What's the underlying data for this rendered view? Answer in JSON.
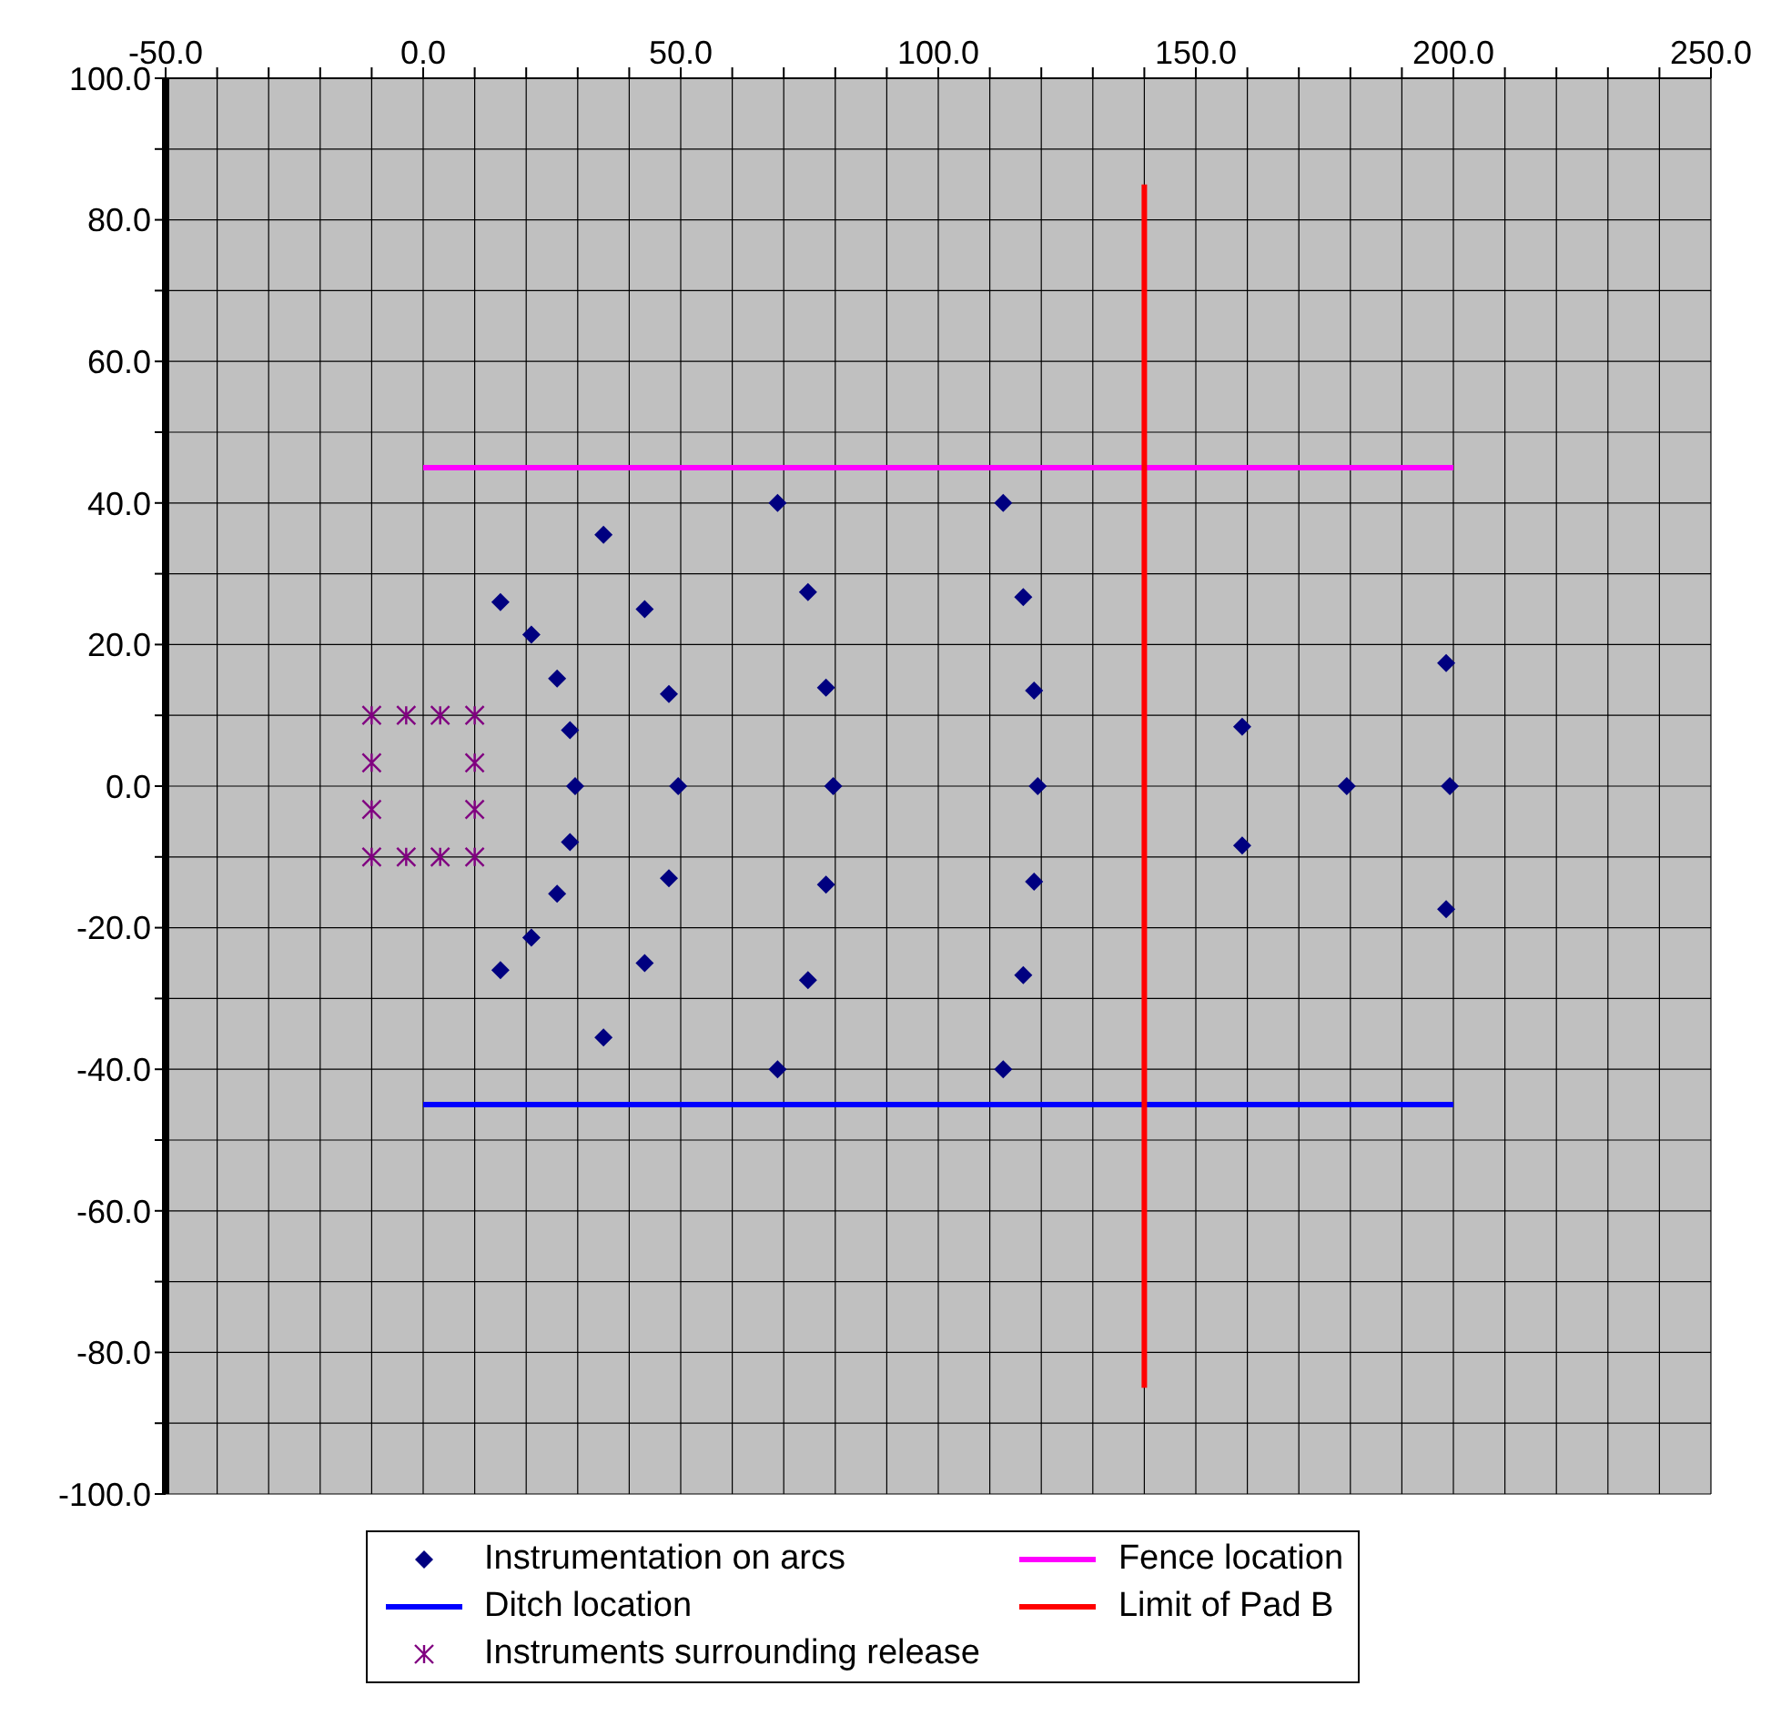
{
  "chart_data": {
    "type": "scatter",
    "xlim": [
      -50,
      250
    ],
    "xticks": [
      {
        "value": -50,
        "label": "-50.0"
      },
      {
        "value": -40,
        "label": null
      },
      {
        "value": -30,
        "label": null
      },
      {
        "value": -20,
        "label": null
      },
      {
        "value": -10,
        "label": null
      },
      {
        "value": 0,
        "label": "0.0"
      },
      {
        "value": 10,
        "label": null
      },
      {
        "value": 20,
        "label": null
      },
      {
        "value": 30,
        "label": null
      },
      {
        "value": 40,
        "label": null
      },
      {
        "value": 50,
        "label": "50.0"
      },
      {
        "value": 60,
        "label": null
      },
      {
        "value": 70,
        "label": null
      },
      {
        "value": 80,
        "label": null
      },
      {
        "value": 90,
        "label": null
      },
      {
        "value": 100,
        "label": "100.0"
      },
      {
        "value": 110,
        "label": null
      },
      {
        "value": 120,
        "label": null
      },
      {
        "value": 130,
        "label": null
      },
      {
        "value": 140,
        "label": null
      },
      {
        "value": 150,
        "label": "150.0"
      },
      {
        "value": 160,
        "label": null
      },
      {
        "value": 170,
        "label": null
      },
      {
        "value": 180,
        "label": null
      },
      {
        "value": 190,
        "label": null
      },
      {
        "value": 200,
        "label": "200.0"
      },
      {
        "value": 210,
        "label": null
      },
      {
        "value": 220,
        "label": null
      },
      {
        "value": 230,
        "label": null
      },
      {
        "value": 240,
        "label": null
      },
      {
        "value": 250,
        "label": "250.0"
      }
    ],
    "ylim": [
      -100,
      100
    ],
    "yticks": [
      {
        "value": -100,
        "label": "-100.0"
      },
      {
        "value": -90,
        "label": null
      },
      {
        "value": -80,
        "label": "-80.0"
      },
      {
        "value": -70,
        "label": null
      },
      {
        "value": -60,
        "label": "-60.0"
      },
      {
        "value": -50,
        "label": null
      },
      {
        "value": -40,
        "label": "-40.0"
      },
      {
        "value": -30,
        "label": null
      },
      {
        "value": -20,
        "label": "-20.0"
      },
      {
        "value": -10,
        "label": null
      },
      {
        "value": 0,
        "label": "0.0"
      },
      {
        "value": 10,
        "label": null
      },
      {
        "value": 20,
        "label": "20.0"
      },
      {
        "value": 30,
        "label": null
      },
      {
        "value": 40,
        "label": "40.0"
      },
      {
        "value": 50,
        "label": null
      },
      {
        "value": 60,
        "label": "60.0"
      },
      {
        "value": 70,
        "label": null
      },
      {
        "value": 80,
        "label": "80.0"
      },
      {
        "value": 90,
        "label": null
      },
      {
        "value": 100,
        "label": "100.0"
      }
    ],
    "grid": true,
    "legend": "bottom",
    "series": [
      {
        "name": "Instrumentation on arcs",
        "marker": "diamond",
        "color": "#000080",
        "x": [
          15,
          21,
          26,
          28.5,
          29.5,
          28.5,
          26,
          21,
          15,
          35,
          43,
          47.7,
          49.5,
          47.7,
          43,
          35,
          68.8,
          74.7,
          78.2,
          79.6,
          78.2,
          74.7,
          68.8,
          112.6,
          116.5,
          118.6,
          119.3,
          118.6,
          116.5,
          112.6,
          159,
          159,
          179.3,
          198.6,
          199.3,
          198.6
        ],
        "values": [
          26,
          21.4,
          15.2,
          7.9,
          0,
          -7.9,
          -15.2,
          -21.4,
          -26,
          35.5,
          25,
          13,
          0,
          -13,
          -25,
          -35.5,
          40,
          27.4,
          13.9,
          0,
          -13.9,
          -27.4,
          -40,
          40,
          26.7,
          13.5,
          0,
          -13.5,
          -26.7,
          -40,
          8.4,
          -8.4,
          0,
          17.4,
          0,
          -17.4
        ]
      },
      {
        "name": "Ditch location",
        "type": "line",
        "marker": "none",
        "color": "#0000ff",
        "x": [
          0,
          200
        ],
        "values": [
          -45,
          -45
        ]
      },
      {
        "name": "Instruments surrounding release",
        "marker": "cross",
        "color": "#800080",
        "x": [
          -10,
          -3.3,
          3.3,
          10,
          -10,
          10,
          -10,
          10,
          -10,
          -3.3,
          3.3,
          10
        ],
        "values": [
          10,
          10,
          10,
          10,
          3.3,
          3.3,
          -3.3,
          -3.3,
          -10,
          -10,
          -10,
          -10
        ]
      },
      {
        "name": "Fence location",
        "type": "line",
        "marker": "none",
        "color": "#ff00ff",
        "x": [
          0,
          200
        ],
        "values": [
          45,
          45
        ]
      },
      {
        "name": "Limit of Pad B",
        "type": "line",
        "marker": "none",
        "color": "#ff0000",
        "x": [
          140,
          140
        ],
        "values": [
          85,
          -85
        ]
      }
    ]
  }
}
